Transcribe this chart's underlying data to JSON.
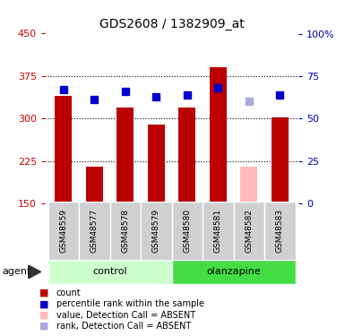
{
  "title": "GDS2608 / 1382909_at",
  "samples": [
    "GSM48559",
    "GSM48577",
    "GSM48578",
    "GSM48579",
    "GSM48580",
    "GSM48581",
    "GSM48582",
    "GSM48583"
  ],
  "bar_values": [
    340,
    215,
    320,
    290,
    320,
    390,
    215,
    302
  ],
  "bar_colors": [
    "#bb0000",
    "#bb0000",
    "#bb0000",
    "#bb0000",
    "#bb0000",
    "#bb0000",
    "#ffbbbb",
    "#bb0000"
  ],
  "rank_values": [
    67,
    61,
    66,
    63,
    64,
    68,
    60,
    64
  ],
  "rank_colors": [
    "#0000cc",
    "#0000cc",
    "#0000cc",
    "#0000cc",
    "#0000cc",
    "#0000cc",
    "#aaaadd",
    "#0000cc"
  ],
  "groups": [
    {
      "label": "control",
      "indices": [
        0,
        1,
        2,
        3
      ],
      "color": "#ccffcc"
    },
    {
      "label": "olanzapine",
      "indices": [
        4,
        5,
        6,
        7
      ],
      "color": "#44dd44"
    }
  ],
  "ylim_left": [
    150,
    450
  ],
  "ylim_right": [
    0,
    100
  ],
  "yticks_left": [
    150,
    225,
    300,
    375,
    450
  ],
  "yticks_right": [
    0,
    25,
    50,
    75,
    100
  ],
  "ylabel_left_color": "#cc0000",
  "ylabel_right_color": "#0000bb",
  "bar_width": 0.55,
  "rank_marker_size": 6,
  "background_color": "#ffffff",
  "legend_items": [
    {
      "color": "#bb0000",
      "label": "count"
    },
    {
      "color": "#0000cc",
      "label": "percentile rank within the sample"
    },
    {
      "color": "#ffbbbb",
      "label": "value, Detection Call = ABSENT"
    },
    {
      "color": "#aaaadd",
      "label": "rank, Detection Call = ABSENT"
    }
  ]
}
